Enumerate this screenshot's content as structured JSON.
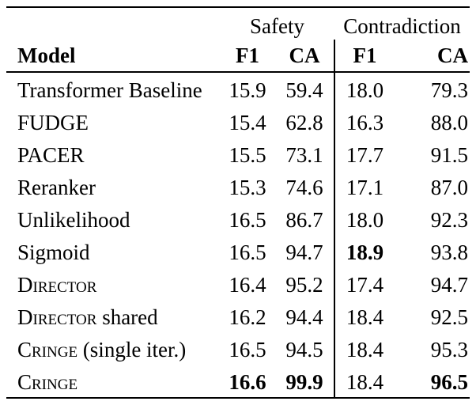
{
  "colors": {
    "text": "#000000",
    "background": "#ffffff",
    "rule": "#000000"
  },
  "table": {
    "groups": [
      {
        "label": "Safety"
      },
      {
        "label": "Contradiction"
      }
    ],
    "headers": {
      "model": "Model",
      "s_f1": "F1",
      "s_ca": "CA",
      "c_f1": "F1",
      "c_ca": "CA"
    },
    "rows": [
      {
        "model_sc": "",
        "model_rest": "Transformer Baseline",
        "s_f1": "15.9",
        "s_ca": "59.4",
        "c_f1": "18.0",
        "c_ca": "79.3"
      },
      {
        "model_sc": "",
        "model_rest": "FUDGE",
        "s_f1": "15.4",
        "s_ca": "62.8",
        "c_f1": "16.3",
        "c_ca": "88.0"
      },
      {
        "model_sc": "",
        "model_rest": "PACER",
        "s_f1": "15.5",
        "s_ca": "73.1",
        "c_f1": "17.7",
        "c_ca": "91.5"
      },
      {
        "model_sc": "",
        "model_rest": "Reranker",
        "s_f1": "15.3",
        "s_ca": "74.6",
        "c_f1": "17.1",
        "c_ca": "87.0"
      },
      {
        "model_sc": "",
        "model_rest": "Unlikelihood",
        "s_f1": "16.5",
        "s_ca": "86.7",
        "c_f1": "18.0",
        "c_ca": "92.3"
      },
      {
        "model_sc": "",
        "model_rest": "Sigmoid",
        "s_f1": "16.5",
        "s_ca": "94.7",
        "c_f1": "18.9",
        "c_ca": "93.8"
      },
      {
        "model_sc": "Director",
        "model_rest": "",
        "s_f1": "16.4",
        "s_ca": "95.2",
        "c_f1": "17.4",
        "c_ca": "94.7"
      },
      {
        "model_sc": "Director",
        "model_rest": " shared",
        "s_f1": "16.2",
        "s_ca": "94.4",
        "c_f1": "18.4",
        "c_ca": "92.5"
      },
      {
        "model_sc": "Cringe",
        "model_rest": " (single iter.)",
        "s_f1": "16.5",
        "s_ca": "94.5",
        "c_f1": "18.4",
        "c_ca": "95.3"
      },
      {
        "model_sc": "Cringe",
        "model_rest": "",
        "s_f1": "16.6",
        "s_ca": "99.9",
        "c_f1": "18.4",
        "c_ca": "96.5"
      }
    ]
  }
}
